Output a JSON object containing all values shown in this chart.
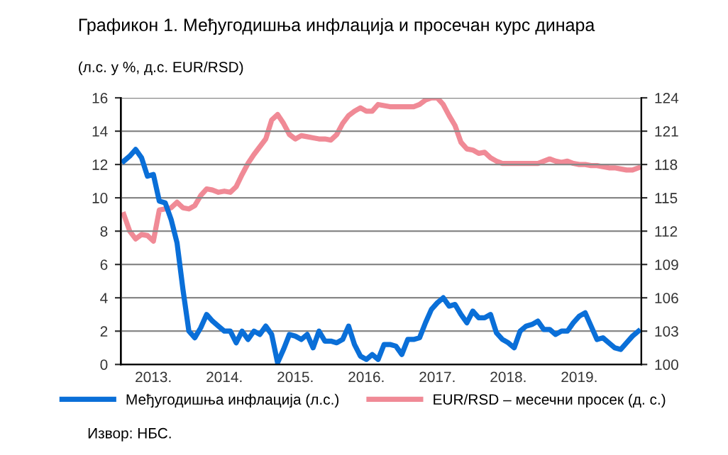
{
  "chart_data": {
    "type": "line",
    "title": "Графикон 1. Међугодишња инфлација и просечан курс динара",
    "subtitle": "(л.с. у %, д.с. EUR/RSD)",
    "annotations": [
      "Извор: НБС."
    ],
    "categories": [
      null,
      null,
      null,
      null,
      null,
      "2013.",
      null,
      null,
      null,
      null,
      null,
      null,
      null,
      null,
      null,
      null,
      null,
      "2014.",
      null,
      null,
      null,
      null,
      null,
      null,
      null,
      null,
      null,
      null,
      null,
      "2015.",
      null,
      null,
      null,
      null,
      null,
      null,
      null,
      null,
      null,
      null,
      null,
      "2016.",
      null,
      null,
      null,
      null,
      null,
      null,
      null,
      null,
      null,
      null,
      null,
      "2017.",
      null,
      null,
      null,
      null,
      null,
      null,
      null,
      null,
      null,
      null,
      null,
      "2018.",
      null,
      null,
      null,
      null,
      null,
      null,
      null,
      null,
      null,
      null,
      null,
      "2019.",
      null,
      null,
      null,
      null,
      null,
      null,
      null,
      null,
      null,
      null
    ],
    "series": [
      {
        "name": "Међугодишња инфлација (л.с.)",
        "color": "#0a6fd8",
        "values": [
          12.2,
          12.5,
          12.9,
          12.4,
          11.3,
          11.4,
          9.8,
          9.7,
          8.7,
          7.3,
          4.5,
          2.0,
          1.6,
          2.2,
          3.0,
          2.6,
          2.3,
          2.0,
          2.0,
          1.3,
          2.0,
          1.5,
          2.0,
          1.8,
          2.3,
          1.8,
          0.1,
          0.9,
          1.8,
          1.7,
          1.5,
          1.8,
          1.0,
          2.0,
          1.4,
          1.4,
          1.3,
          1.5,
          2.3,
          1.2,
          0.5,
          0.3,
          0.6,
          0.3,
          1.2,
          1.2,
          1.1,
          0.6,
          1.5,
          1.5,
          1.6,
          2.5,
          3.3,
          3.7,
          4.0,
          3.5,
          3.6,
          3.0,
          2.5,
          3.2,
          2.8,
          2.8,
          3.0,
          1.9,
          1.5,
          1.3,
          1.0,
          2.0,
          2.3,
          2.4,
          2.6,
          2.1,
          2.1,
          1.8,
          2.0,
          2.0,
          2.5,
          2.9,
          3.1,
          2.3,
          1.5,
          1.6,
          1.3,
          1.0,
          0.9,
          1.3,
          1.7,
          2.0
        ]
      },
      {
        "name": "EUR/RSD – месечни просек (д. с.)",
        "color": "#f08a96",
        "axis": "y2",
        "values": [
          113.5,
          112.0,
          111.3,
          111.7,
          111.6,
          111.1,
          113.9,
          114.0,
          114.1,
          114.6,
          114.1,
          114.0,
          114.3,
          115.2,
          115.8,
          115.7,
          115.5,
          115.6,
          115.5,
          116.0,
          117.1,
          118.1,
          118.9,
          119.6,
          120.3,
          122.0,
          122.5,
          121.7,
          120.7,
          120.3,
          120.6,
          120.5,
          120.4,
          120.3,
          120.3,
          120.2,
          120.7,
          121.7,
          122.4,
          122.8,
          123.1,
          122.8,
          122.8,
          123.4,
          123.3,
          123.2,
          123.2,
          123.2,
          123.2,
          123.2,
          123.4,
          123.8,
          124.0,
          124.0,
          123.4,
          122.4,
          121.5,
          120.0,
          119.4,
          119.3,
          119.0,
          119.1,
          118.6,
          118.3,
          118.1,
          118.1,
          118.1,
          118.1,
          118.1,
          118.1,
          118.1,
          118.3,
          118.5,
          118.3,
          118.2,
          118.3,
          118.1,
          118.0,
          118.0,
          117.9,
          117.9,
          117.8,
          117.7,
          117.7,
          117.6,
          117.5,
          117.5,
          117.7
        ]
      }
    ],
    "ylim": [
      0,
      16
    ],
    "yticks": [
      0,
      2,
      4,
      6,
      8,
      10,
      12,
      14,
      16
    ],
    "y2lim": [
      100,
      124
    ],
    "y2ticks": [
      100,
      103,
      106,
      109,
      112,
      115,
      118,
      121,
      124
    ],
    "grid": "y",
    "legend": "bottom",
    "line_style": "solid",
    "marker": "none"
  }
}
